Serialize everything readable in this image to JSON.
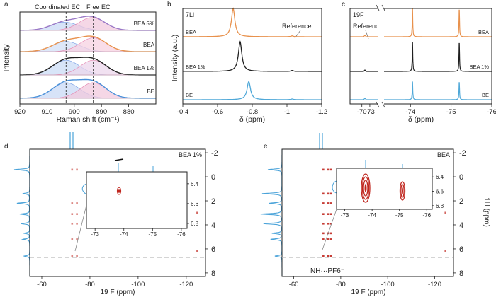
{
  "chart_data": [
    {
      "panel": "a",
      "type": "line",
      "xlabel": "Raman shift (cm⁻¹)",
      "ylabel": "Intensity",
      "xlim": [
        920,
        870
      ],
      "x_ticks": [
        920,
        910,
        900,
        890,
        880
      ],
      "annotations": [
        "Coordinated EC",
        "Free EC"
      ],
      "dashed_lines_x": [
        903,
        893
      ],
      "series": [
        {
          "name": "BEA 5%",
          "color": "#9a78c6",
          "peaks": [
            {
              "center": 903.5,
              "height": 0.45,
              "width": 5.0
            },
            {
              "center": 893.5,
              "height": 0.7,
              "width": 4.8
            }
          ]
        },
        {
          "name": "BEA",
          "color": "#e8914c",
          "peaks": [
            {
              "center": 903,
              "height": 0.55,
              "width": 5.0
            },
            {
              "center": 893,
              "height": 0.75,
              "width": 4.8
            }
          ]
        },
        {
          "name": "BEA 1%",
          "color": "#1f1f1f",
          "peaks": [
            {
              "center": 903,
              "height": 0.8,
              "width": 5.0
            },
            {
              "center": 893,
              "height": 0.8,
              "width": 4.8
            }
          ]
        },
        {
          "name": "BE",
          "color": "#4a90d9",
          "peaks": [
            {
              "center": 903,
              "height": 0.85,
              "width": 5.0
            },
            {
              "center": 893,
              "height": 0.85,
              "width": 4.8
            }
          ]
        }
      ]
    },
    {
      "panel": "b",
      "type": "line",
      "nucleus": "7Li",
      "xlabel": "δ (ppm)",
      "ylabel": "Intensity (a.u.)",
      "xlim": [
        -0.4,
        -1.2
      ],
      "x_ticks": [
        -0.4,
        -0.6,
        -0.8,
        -1.0,
        -1.2
      ],
      "annotations": [
        "Reference"
      ],
      "series": [
        {
          "name": "BEA",
          "color": "#e8914c",
          "peaks": [
            {
              "center": -0.69,
              "height": 1.0
            },
            {
              "center": -1.03,
              "height": 0.03
            }
          ]
        },
        {
          "name": "BEA 1%",
          "color": "#1f1f1f",
          "peaks": [
            {
              "center": -0.73,
              "height": 1.0
            },
            {
              "center": -1.03,
              "height": 0.03
            }
          ]
        },
        {
          "name": "BE",
          "color": "#4fa8d8",
          "peaks": [
            {
              "center": -0.78,
              "height": 0.8
            },
            {
              "center": -1.03,
              "height": 0.03
            }
          ]
        }
      ]
    },
    {
      "panel": "c",
      "type": "line",
      "nucleus": "19F",
      "xlabel": "δ (ppm)",
      "x_ticks": [
        -70,
        -73,
        -74,
        -75,
        -76
      ],
      "annotations": [
        "Reference"
      ],
      "series": [
        {
          "name": "BEA",
          "color": "#e8914c",
          "peaks": [
            {
              "center": -74.05,
              "height": 1.0
            },
            {
              "center": -75.2,
              "height": 1.0
            }
          ]
        },
        {
          "name": "BEA 1%",
          "color": "#1f1f1f",
          "peaks": [
            {
              "center": -74.05,
              "height": 1.0
            },
            {
              "center": -75.2,
              "height": 1.0
            }
          ]
        },
        {
          "name": "BE",
          "color": "#4fa8d8",
          "peaks": [
            {
              "center": -74.05,
              "height": 0.8
            },
            {
              "center": -75.2,
              "height": 0.8
            }
          ]
        }
      ]
    },
    {
      "panel": "d",
      "type": "heatmap",
      "label": "BEA 1%",
      "xlabel": "19 F (ppm)",
      "ylabel": "1H (ppm)",
      "x_ticks": [
        -60,
        -80,
        -100,
        -120
      ],
      "y_ticks": [
        -2,
        0,
        2,
        4,
        6,
        8
      ],
      "inset": {
        "x_ticks": [
          -73,
          -74,
          -75,
          -76
        ],
        "y_ticks": [
          6.4,
          6.6,
          6.8
        ],
        "spots": [
          {
            "x": -74.0,
            "y": 6.55
          }
        ]
      }
    },
    {
      "panel": "e",
      "type": "heatmap",
      "label": "BEA",
      "xlabel": "19 F (ppm)",
      "ylabel": "1H (ppm)",
      "x_ticks": [
        -60,
        -80,
        -100,
        -120
      ],
      "y_ticks": [
        -2,
        0,
        2,
        4,
        6,
        8
      ],
      "annotation": "NH···PF6⁻",
      "inset": {
        "x_ticks": [
          -73,
          -74,
          -75,
          -76
        ],
        "y_ticks": [
          6.4,
          6.6,
          6.8
        ],
        "spots": [
          {
            "x": -74.0,
            "y": 6.55
          },
          {
            "x": -75.2,
            "y": 6.6
          }
        ]
      }
    }
  ],
  "labels": {
    "a": "a",
    "b": "b",
    "c": "c",
    "d": "d",
    "e": "e",
    "a_xlabel": "Raman shift (cm⁻¹)",
    "a_ylabel": "Intensity",
    "a_coord": "Coordinated EC",
    "a_free": "Free EC",
    "b_nucleus": "7Li",
    "b_ylabel": "Intensity (a.u.)",
    "b_xlabel": "δ (ppm)",
    "b_ref": "Reference",
    "c_nucleus": "19F",
    "c_xlabel": "δ (ppm)",
    "c_ref": "Reference",
    "d_label": "BEA 1%",
    "d_xlabel": "19 F (ppm)",
    "e_label": "BEA",
    "e_xlabel": "19 F (ppm)",
    "e_ylabel": "1H (ppm)",
    "e_annot": "NH···PF6⁻"
  }
}
